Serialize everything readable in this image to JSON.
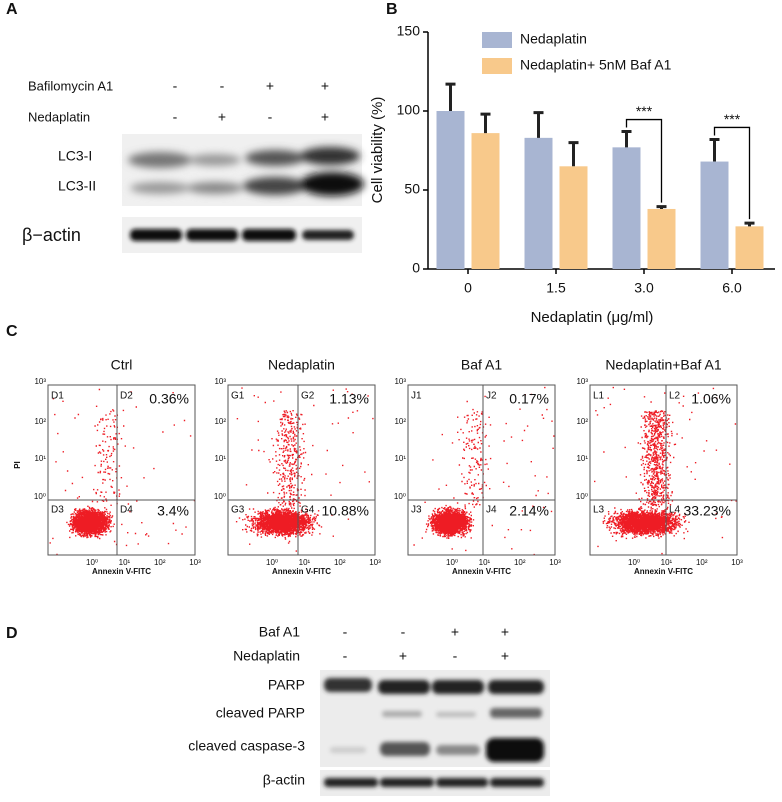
{
  "panels": {
    "A": {
      "label": "A",
      "rows": [
        {
          "name": "Bafilomycin A1",
          "signs": [
            "-",
            "-",
            "+",
            "+"
          ]
        },
        {
          "name": "Nedaplatin",
          "signs": [
            "-",
            "+",
            "-",
            "+"
          ]
        }
      ],
      "bands": [
        "LC3-I",
        "LC3-II",
        "β−actin"
      ]
    },
    "C": {
      "label": "C",
      "y_label": "PI",
      "x_label": "Annexin V-FITC",
      "yticks": [
        "10³",
        "10²",
        "10¹",
        "10⁰"
      ],
      "xticks": [
        "10⁰",
        "10¹",
        "10²",
        "10³"
      ],
      "plots": [
        {
          "title": "Ctrl",
          "quadrants": [
            "D1",
            "D2",
            "D3",
            "D4"
          ],
          "upper_right": "0.36%",
          "lower_right": "3.4%"
        },
        {
          "title": "Nedaplatin",
          "quadrants": [
            "G1",
            "G2",
            "G3",
            "G4"
          ],
          "upper_right": "1.13%",
          "lower_right": "10.88%"
        },
        {
          "title": "Baf A1",
          "quadrants": [
            "J1",
            "J2",
            "J3",
            "J4"
          ],
          "upper_right": "0.17%",
          "lower_right": "2.14%"
        },
        {
          "title": "Nedaplatin+Baf A1",
          "quadrants": [
            "L1",
            "L2",
            "L3",
            "L4"
          ],
          "upper_right": "1.06%",
          "lower_right": "33.23%"
        }
      ]
    },
    "D": {
      "label": "D",
      "rows": [
        {
          "name": "Baf A1",
          "signs": [
            "-",
            "-",
            "+",
            "+"
          ]
        },
        {
          "name": "Nedaplatin",
          "signs": [
            "-",
            "+",
            "-",
            "+"
          ]
        }
      ],
      "bands": [
        "PARP",
        "cleaved PARP",
        "cleaved caspase-3",
        "β-actin"
      ]
    }
  },
  "chart_data": {
    "type": "bar",
    "panel_label": "B",
    "y_label": "Cell viability (%)",
    "x_label": "Nedaplatin (μg/ml)",
    "categories": [
      "0",
      "1.5",
      "3.0",
      "6.0"
    ],
    "series": [
      {
        "name": "Nedaplatin",
        "color": "#a8b5d2",
        "values": [
          100,
          83,
          77,
          68
        ],
        "errors": [
          17,
          16,
          10,
          14
        ]
      },
      {
        "name": "Nedaplatin+ 5nM Baf A1",
        "color": "#f8c98b",
        "values": [
          86,
          65,
          38,
          27
        ],
        "errors": [
          12,
          15,
          1.5,
          2
        ]
      }
    ],
    "ylim": [
      0,
      150
    ],
    "yticks": [
      0,
      50,
      100,
      150
    ],
    "annotations": [
      {
        "text": "***",
        "category": "3.0"
      },
      {
        "text": "***",
        "category": "6.0"
      }
    ]
  }
}
